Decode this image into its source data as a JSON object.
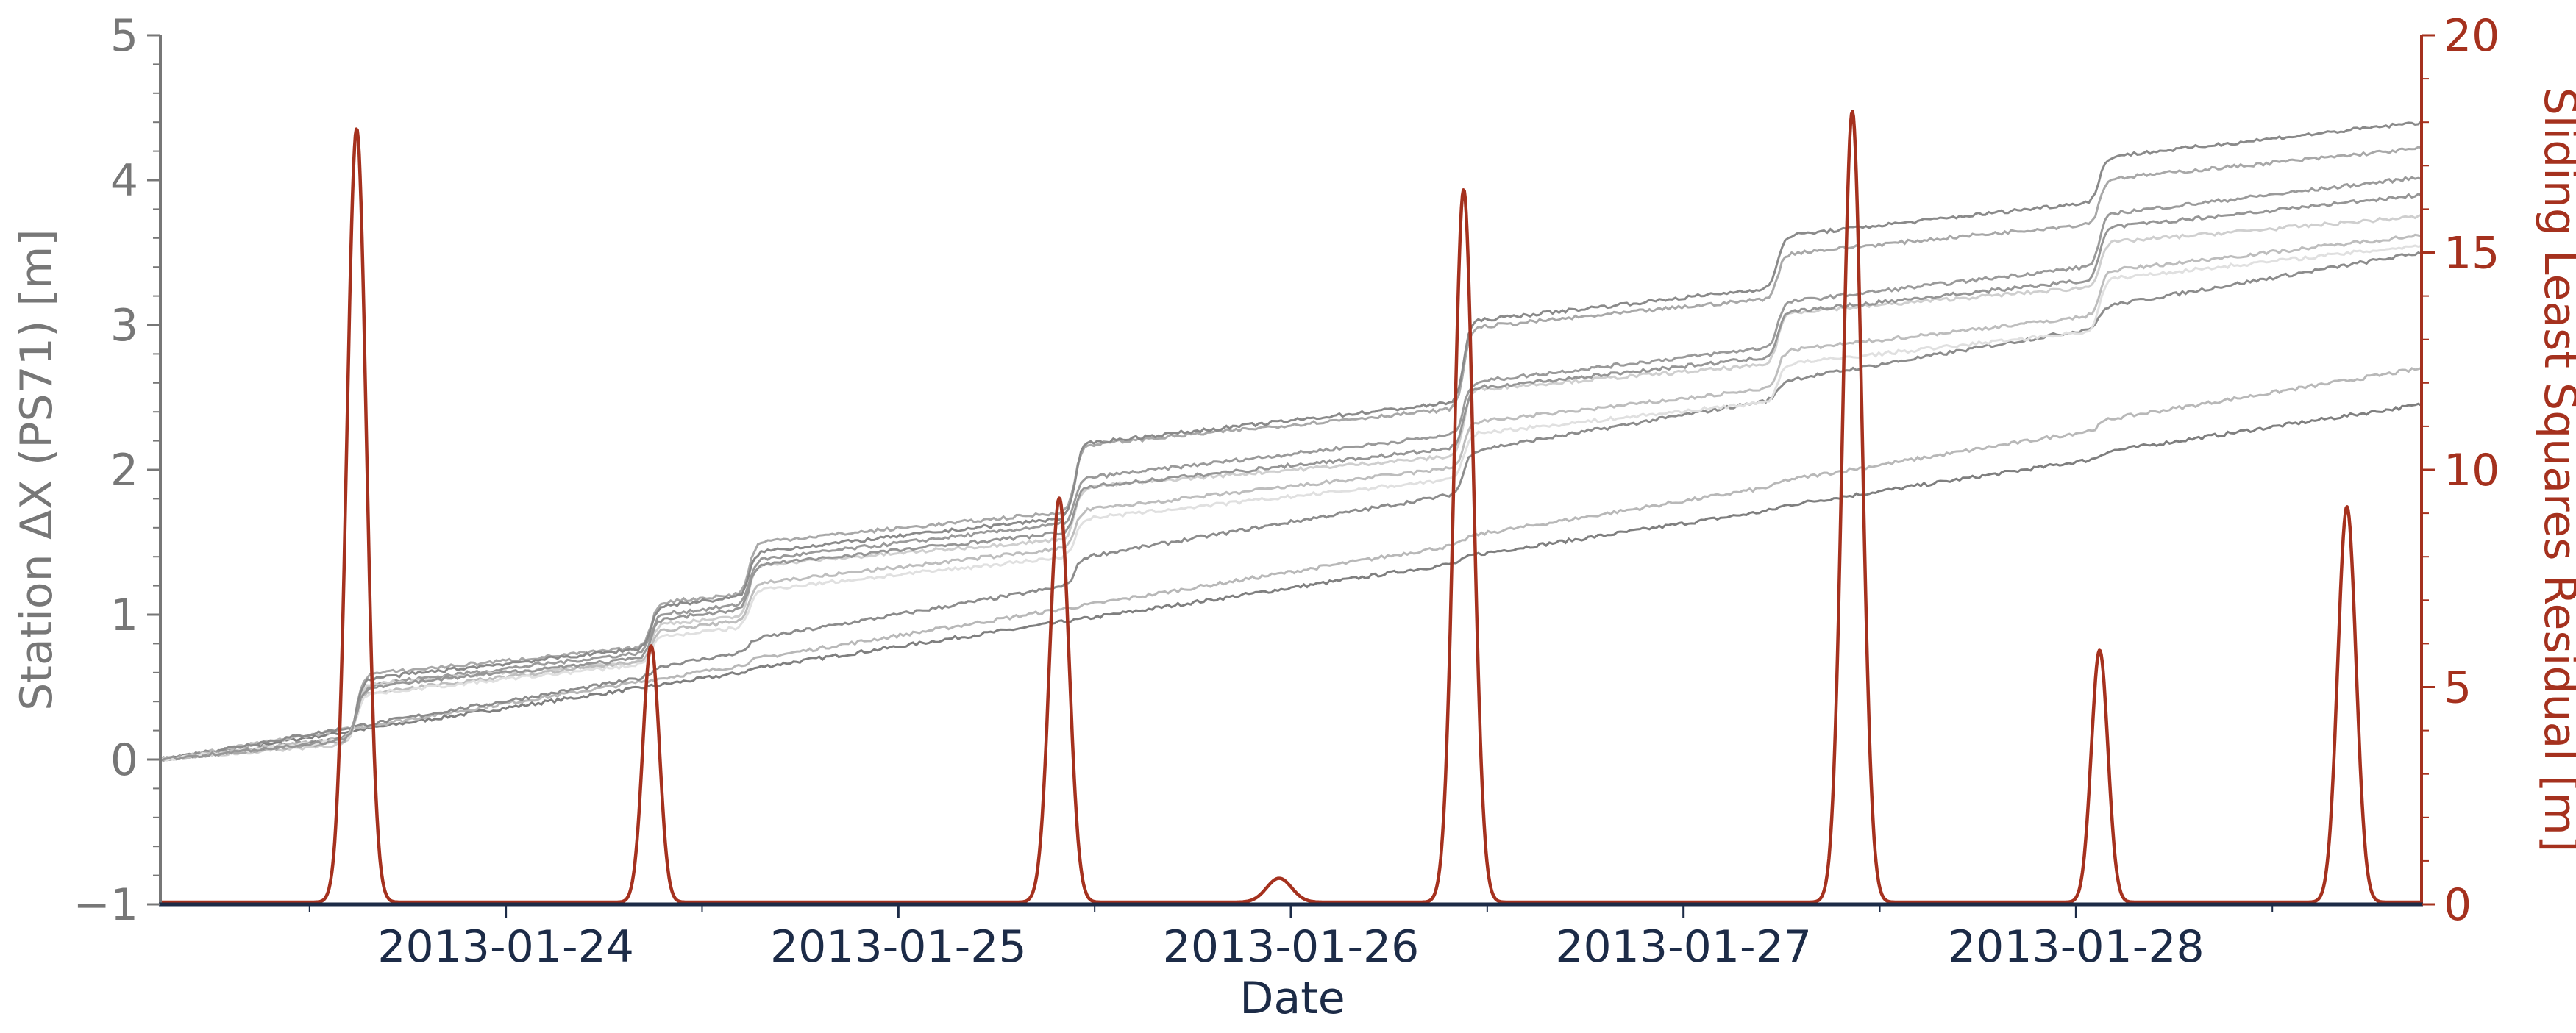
{
  "chart_data": {
    "type": "line",
    "xlabel": "Date",
    "ylabel_left": "Station ΔX (PS71) [m]",
    "ylabel_right": "Sliding Least Squares Residual [m]",
    "xlim": [
      -0.88,
      4.88
    ],
    "ylim_left": [
      -1,
      5
    ],
    "ylim_right": [
      0,
      20
    ],
    "x_ticks": [
      {
        "value": 0,
        "label": "2013-01-24"
      },
      {
        "value": 1,
        "label": "2013-01-25"
      },
      {
        "value": 2,
        "label": "2013-01-26"
      },
      {
        "value": 3,
        "label": "2013-01-27"
      },
      {
        "value": 4,
        "label": "2013-01-28"
      }
    ],
    "y_left_ticks": [
      {
        "value": -1,
        "label": "−1"
      },
      {
        "value": 0,
        "label": "0"
      },
      {
        "value": 1,
        "label": "1"
      },
      {
        "value": 2,
        "label": "2"
      },
      {
        "value": 3,
        "label": "3"
      },
      {
        "value": 4,
        "label": "4"
      },
      {
        "value": 5,
        "label": "5"
      }
    ],
    "y_right_ticks": [
      {
        "value": 0,
        "label": "0"
      },
      {
        "value": 5,
        "label": "5"
      },
      {
        "value": 10,
        "label": "10"
      },
      {
        "value": 15,
        "label": "15"
      },
      {
        "value": 20,
        "label": "20"
      }
    ],
    "grid": false,
    "colors": {
      "residual": "#a5311e",
      "left_axis": "#777777",
      "right_axis": "#a5311e",
      "x_axis": "#1c2b47"
    },
    "step_days": [
      -0.38,
      0.37,
      0.62,
      1.45,
      2.44,
      3.24,
      4.06
    ],
    "stations": [
      {
        "color": "#7f7f7f",
        "end": 2.45,
        "steps": [
          0.0,
          0.0,
          0.02,
          0.0,
          0.04,
          0.02,
          0.04
        ]
      },
      {
        "color": "#b8b8b8",
        "end": 2.7,
        "steps": [
          0.0,
          0.0,
          0.03,
          0.0,
          0.05,
          0.03,
          0.06
        ]
      },
      {
        "color": "#8c8c8c",
        "end": 3.5,
        "steps": [
          0.0,
          0.06,
          0.08,
          0.18,
          0.28,
          0.12,
          0.14
        ]
      },
      {
        "color": "#9a9a9a",
        "end": 4.02,
        "steps": [
          0.35,
          0.25,
          0.3,
          0.3,
          0.35,
          0.3,
          0.35
        ]
      },
      {
        "color": "#cfcfcf",
        "end": 3.75,
        "steps": [
          0.4,
          0.25,
          0.35,
          0.35,
          0.45,
          0.35,
          0.3
        ]
      },
      {
        "color": "#a8a8a8",
        "end": 4.22,
        "steps": [
          0.45,
          0.3,
          0.35,
          0.45,
          0.55,
          0.3,
          0.3
        ]
      },
      {
        "color": "#8a8a8a",
        "end": 4.4,
        "steps": [
          0.4,
          0.28,
          0.3,
          0.5,
          0.55,
          0.35,
          0.3
        ]
      },
      {
        "color": "#bdbdbd",
        "end": 3.62,
        "steps": [
          0.3,
          0.2,
          0.25,
          0.25,
          0.3,
          0.25,
          0.3
        ]
      },
      {
        "color": "#e0e0e0",
        "end": 3.55,
        "steps": [
          0.3,
          0.18,
          0.25,
          0.25,
          0.3,
          0.25,
          0.35
        ]
      },
      {
        "color": "#969696",
        "end": 3.9,
        "steps": [
          0.35,
          0.26,
          0.3,
          0.3,
          0.4,
          0.3,
          0.35
        ]
      }
    ],
    "residual_peaks": [
      {
        "x": -0.38,
        "y": 17.8,
        "width": 0.035
      },
      {
        "x": 0.37,
        "y": 5.9,
        "width": 0.03
      },
      {
        "x": 1.41,
        "y": 9.3,
        "width": 0.035
      },
      {
        "x": 2.44,
        "y": 16.4,
        "width": 0.035
      },
      {
        "x": 3.43,
        "y": 18.2,
        "width": 0.035
      },
      {
        "x": 4.06,
        "y": 5.8,
        "width": 0.03
      },
      {
        "x": 4.69,
        "y": 9.1,
        "width": 0.033
      }
    ],
    "residual_bumps": [
      {
        "x": 1.97,
        "y": 0.55,
        "width": 0.045
      }
    ],
    "residual_baseline": 0.05
  }
}
